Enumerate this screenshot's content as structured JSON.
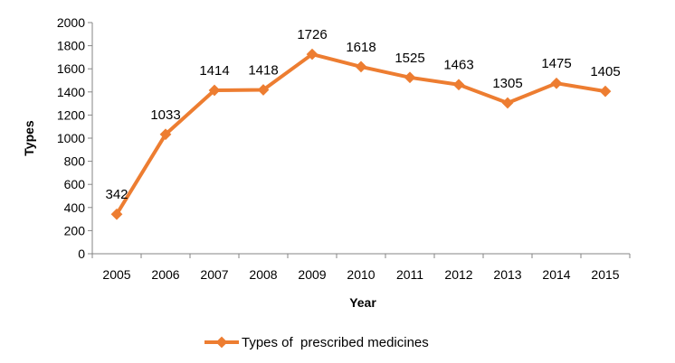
{
  "chart_data": {
    "type": "line",
    "categories": [
      "2005",
      "2006",
      "2007",
      "2008",
      "2009",
      "2010",
      "2011",
      "2012",
      "2013",
      "2014",
      "2015"
    ],
    "series": [
      {
        "name": "Types of  prescribed medicines",
        "values": [
          342,
          1033,
          1414,
          1418,
          1726,
          1618,
          1525,
          1463,
          1305,
          1475,
          1405
        ],
        "color": "#ED7D31",
        "marker": "diamond"
      }
    ],
    "data_labels": [
      "342",
      "1033",
      "1414",
      "1418",
      "1726",
      "1618",
      "1525",
      "1463",
      "1305",
      "1475",
      "1405"
    ],
    "xlabel": "Year",
    "ylabel": "Types",
    "ylim": [
      0,
      2000
    ],
    "yticks": [
      "0",
      "200",
      "400",
      "600",
      "800",
      "1000",
      "1200",
      "1400",
      "1600",
      "1800",
      "2000"
    ],
    "grid": false,
    "legend_position": "bottom"
  }
}
